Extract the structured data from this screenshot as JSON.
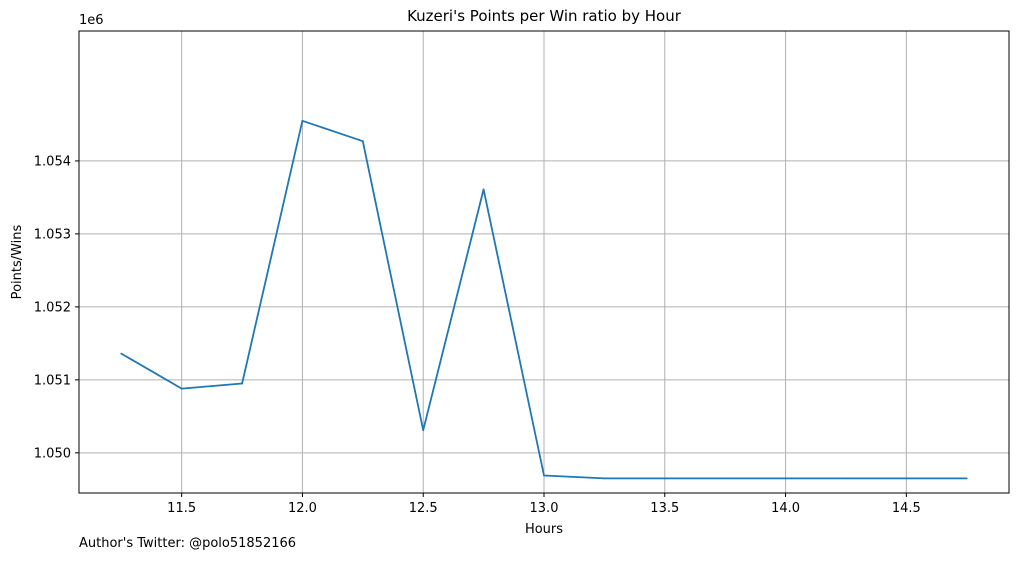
{
  "chart_data": {
    "type": "line",
    "title": "Kuzeri's Points per Win ratio by Hour",
    "xlabel": "Hours",
    "ylabel": "Points/Wins",
    "y_offset_label": "1e6",
    "xlim": [
      11.075,
      14.925
    ],
    "ylim": [
      1049.45,
      1055.78
    ],
    "x_ticks": [
      11.5,
      12.0,
      12.5,
      13.0,
      13.5,
      14.0,
      14.5
    ],
    "x_tick_labels": [
      "11.5",
      "12.0",
      "12.5",
      "13.0",
      "13.5",
      "14.0",
      "14.5"
    ],
    "y_ticks": [
      1050,
      1051,
      1052,
      1053,
      1054
    ],
    "y_tick_labels": [
      "1.050",
      "1.051",
      "1.052",
      "1.053",
      "1.054"
    ],
    "grid": true,
    "legend": "none",
    "series": [
      {
        "color": "#1f77b4",
        "x": [
          11.25,
          11.5,
          11.75,
          12.0,
          12.25,
          12.5,
          12.75,
          13.0,
          13.25,
          13.5,
          13.75,
          14.0,
          14.25,
          14.5,
          14.75
        ],
        "y": [
          1051.36,
          1050.88,
          1050.95,
          1054.55,
          1054.27,
          1050.31,
          1053.61,
          1049.69,
          1049.65,
          1049.65,
          1049.65,
          1049.65,
          1049.65,
          1049.65,
          1049.65
        ]
      }
    ]
  },
  "footer": {
    "author_note": "Author's Twitter: @polo51852166"
  }
}
